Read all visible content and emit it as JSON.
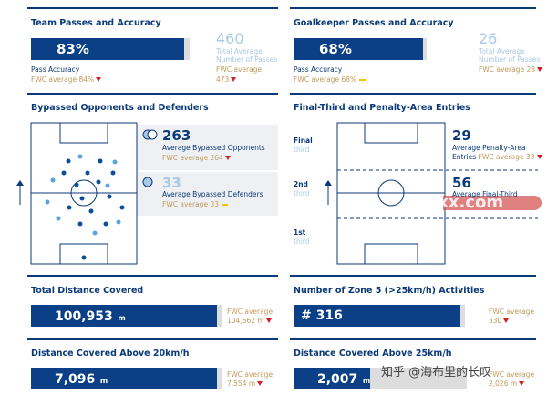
{
  "team_passes": {
    "title": "Team Passes and Accuracy",
    "value": "83%",
    "label": "Pass Accuracy",
    "fwc": "FWC average 84%",
    "fwc_trend": "down",
    "total": "460",
    "total_label": [
      "Total Average",
      "Number of Passes"
    ],
    "total_fwc": "FWC average",
    "total_fwc_value": "473",
    "total_fwc_trend": "down"
  },
  "gk_passes": {
    "title": "Goalkeeper Passes and Accuracy",
    "value": "68%",
    "label": "Pass Accuracy",
    "fwc": "FWC average 68%",
    "fwc_trend": "equal",
    "total": "26",
    "total_label": [
      "Total Average",
      "Number of Passes"
    ],
    "total_fwc": "FWC average 28",
    "total_fwc_trend": "down"
  },
  "bypassed": {
    "title": "Bypassed Opponents and Defenders",
    "opponents": "263",
    "opponents_label": "Average Bypassed Opponents",
    "opponents_fwc": "FWC average 264",
    "opponents_trend": "down",
    "defenders": "33",
    "defenders_label": "Average Bypassed Defenders",
    "defenders_fwc": "FWC average 33",
    "defenders_trend": "equal"
  },
  "entries": {
    "title": "Final-Third and Penalty-Area Entries",
    "thirds": [
      [
        "Final",
        "third"
      ],
      [
        "2nd",
        "third"
      ],
      [
        "1st",
        "third"
      ]
    ],
    "penalty": "29",
    "penalty_label": [
      "Average Penalty-Area",
      "Entries"
    ],
    "penalty_fwc": "FWC average 33",
    "penalty_trend": "down",
    "final": "56",
    "final_label": "Average Final-Third"
  },
  "distance": {
    "title": "Total Distance Covered",
    "value": "100,953",
    "unit": "m",
    "fwc": "FWC average",
    "fwc_value": "104,662 m",
    "fwc_trend": "down"
  },
  "zone5": {
    "title": "Number of Zone 5 (>25km/h) Activities",
    "value": "# 316",
    "fwc": "FWC average",
    "fwc_value": "330",
    "fwc_trend": "down"
  },
  "above20": {
    "title": "Distance Covered Above 20km/h",
    "value": "7,096",
    "unit": "m",
    "fwc": "FWC average",
    "fwc_value": "7,554 m",
    "fwc_trend": "down"
  },
  "above25": {
    "title": "Distance Covered Above 25km/h",
    "value": "2,007",
    "unit": "m",
    "fwc": "FWC average",
    "fwc_value": "2,026 m",
    "fwc_trend": "down"
  },
  "watermarks": [
    "cdsxx.com",
    "知乎 @海布里的长叹"
  ]
}
